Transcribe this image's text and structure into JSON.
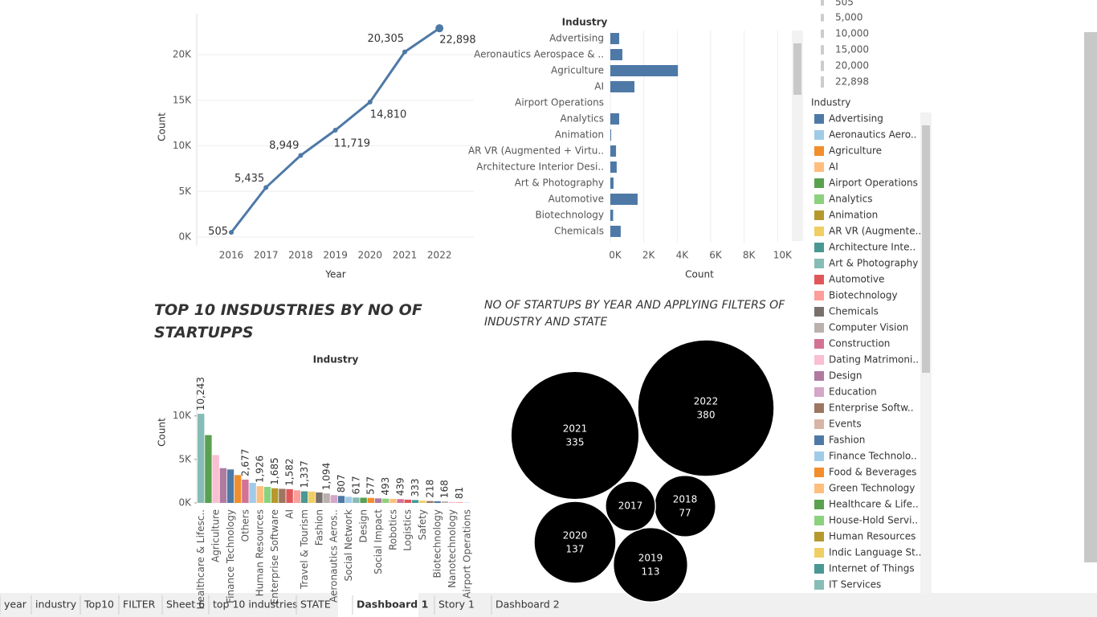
{
  "chart_data": [
    {
      "type": "line",
      "categories": [
        "2016",
        "2017",
        "2018",
        "2019",
        "2020",
        "2021",
        "2022"
      ],
      "values": [
        505,
        5435,
        8949,
        11719,
        14810,
        20305,
        22898
      ],
      "value_labels": [
        "505",
        "5,435",
        "8,949",
        "11,719",
        "14,810",
        "20,305",
        "22,898"
      ],
      "color": "#4e79a7",
      "xlabel": "Year",
      "ylabel": "Count",
      "ylim": [
        0,
        24500
      ],
      "yticks": [
        {
          "value": 0,
          "label": "0K"
        },
        {
          "value": 5000,
          "label": "5K"
        },
        {
          "value": 10000,
          "label": "10K"
        },
        {
          "value": 15000,
          "label": "15K"
        },
        {
          "value": 20000,
          "label": "20K"
        }
      ],
      "grid": true
    },
    {
      "type": "hbar",
      "header": "Industry",
      "categories": [
        "Advertising",
        "Aeronautics Aerospace & ..",
        "Agriculture",
        "AI",
        "Airport Operations",
        "Analytics",
        "Animation",
        "AR VR (Augmented + Virtu..",
        "Architecture Interior Desi..",
        "Art & Photography",
        "Automotive",
        "Biotechnology",
        "Chemicals"
      ],
      "values": [
        530,
        720,
        4040,
        1440,
        0,
        530,
        50,
        340,
        380,
        190,
        1630,
        168,
        620
      ],
      "color": "#4e79a7",
      "xlabel": "Count",
      "xlim": [
        0,
        10800
      ],
      "xticks": [
        {
          "value": 0,
          "label": "0K"
        },
        {
          "value": 2000,
          "label": "2K"
        },
        {
          "value": 4000,
          "label": "4K"
        },
        {
          "value": 6000,
          "label": "6K"
        },
        {
          "value": 8000,
          "label": "8K"
        },
        {
          "value": 10000,
          "label": "10K"
        }
      ],
      "grid": true
    },
    {
      "type": "bar",
      "title": "TOP 10 INSDUSTRIES BY NO OF STARTUPPS",
      "header": "Industry",
      "ylabel": "Count",
      "categories": [
        "Healthcare & Lifesc..",
        null,
        "Agriculture",
        null,
        "Finance Technology",
        null,
        "Others",
        null,
        "Human Resources",
        null,
        "Enterprise Software",
        null,
        "AI",
        null,
        "Travel & Tourism",
        null,
        "Fashion",
        null,
        "Aeronautics Aeros..",
        null,
        "Social Network",
        null,
        "Design",
        null,
        "Social Impact",
        null,
        "Robotics",
        null,
        "Logistics",
        null,
        "Safety",
        null,
        "Biotechnology",
        null,
        "Nanotechnology",
        null,
        "Airport Operations"
      ],
      "values": [
        10243,
        7800,
        5500,
        4000,
        3850,
        3200,
        2677,
        2300,
        1926,
        1850,
        1685,
        1620,
        1582,
        1450,
        1337,
        1300,
        1200,
        1094,
        900,
        807,
        700,
        617,
        600,
        577,
        520,
        493,
        460,
        439,
        380,
        333,
        260,
        218,
        190,
        168,
        120,
        81,
        40
      ],
      "value_labels": [
        "10,243",
        null,
        null,
        null,
        null,
        null,
        "2,677",
        null,
        "1,926",
        null,
        "1,685",
        null,
        "1,582",
        null,
        "1,337",
        null,
        null,
        "1,094",
        null,
        "807",
        null,
        "617",
        null,
        "577",
        null,
        "493",
        null,
        "439",
        null,
        "333",
        null,
        "218",
        null,
        "168",
        null,
        "81",
        null
      ],
      "colors": [
        "#86bcb6",
        "#59a14f",
        "#fabfd2",
        "#b07aa1",
        "#4e79a7",
        "#f28e2b",
        "#d37295",
        "#a0cbe8",
        "#ffbe7d",
        "#8cd17d",
        "#b6992d",
        "#9d7660",
        "#e15759",
        "#ff9d9a",
        "#499894",
        "#f1ce63",
        "#79706e",
        "#bab0ac",
        "#d4a6c8",
        "#4e79a7",
        "#a0cbe8",
        "#86bcb6",
        "#59a14f",
        "#f28e2b",
        "#b07aa1",
        "#8cd17d",
        "#ffbe7d",
        "#d37295",
        "#e15759",
        "#499894",
        "#f1ce63",
        "#9d7660",
        "#4e79a7",
        "#bab0ac",
        "#fabfd2",
        "#ff9d9a",
        "#a0cbe8"
      ],
      "ylim": [
        0,
        14500
      ],
      "yticks": [
        {
          "value": 0,
          "label": "0K"
        },
        {
          "value": 5000,
          "label": "5K"
        },
        {
          "value": 10000,
          "label": "10K"
        }
      ]
    },
    {
      "type": "bubble",
      "title": "NO OF STARTUPS BY YEAR AND APPLYING FILTERS OF INDUSTRY AND STATE",
      "categories": [
        "2022",
        "2021",
        "2020",
        "2019",
        "2018",
        "2017"
      ],
      "values": [
        380,
        335,
        137,
        113,
        77,
        51
      ],
      "value_labels": [
        "380",
        "335",
        "137",
        "113",
        "77",
        null
      ],
      "color": "#000000"
    }
  ],
  "size_legend": {
    "items": [
      "505",
      "5,000",
      "10,000",
      "15,000",
      "20,000",
      "22,898"
    ]
  },
  "color_legend": {
    "title": "Industry",
    "palette": [
      "#4e79a7",
      "#a0cbe8",
      "#f28e2b",
      "#ffbe7d",
      "#59a14f",
      "#8cd17d",
      "#b6992d",
      "#f1ce63",
      "#499894",
      "#86bcb6",
      "#e15759",
      "#ff9d9a",
      "#79706e",
      "#bab0ac",
      "#d37295",
      "#fabfd2",
      "#b07aa1",
      "#d4a6c8",
      "#9d7660",
      "#d7b5a6"
    ],
    "items": [
      "Advertising",
      "Aeronautics Aero..",
      "Agriculture",
      "AI",
      "Airport Operations",
      "Analytics",
      "Animation",
      "AR VR (Augmente..",
      "Architecture Inte..",
      "Art & Photography",
      "Automotive",
      "Biotechnology",
      "Chemicals",
      "Computer Vision",
      "Construction",
      "Dating Matrimoni..",
      "Design",
      "Education",
      "Enterprise Softw..",
      "Events",
      "Fashion",
      "Finance Technolo..",
      "Food & Beverages",
      "Green Technology",
      "Healthcare & Life..",
      "House-Hold Servi..",
      "Human Resources",
      "Indic Language St..",
      "Internet of Things",
      "IT Services"
    ]
  },
  "tabs": [
    "year",
    "industry",
    "Top10",
    "FILTER",
    "Sheet 6",
    "top 10 industries",
    "STATE",
    "Dashboard 1",
    "Story 1",
    "Dashboard 2"
  ]
}
